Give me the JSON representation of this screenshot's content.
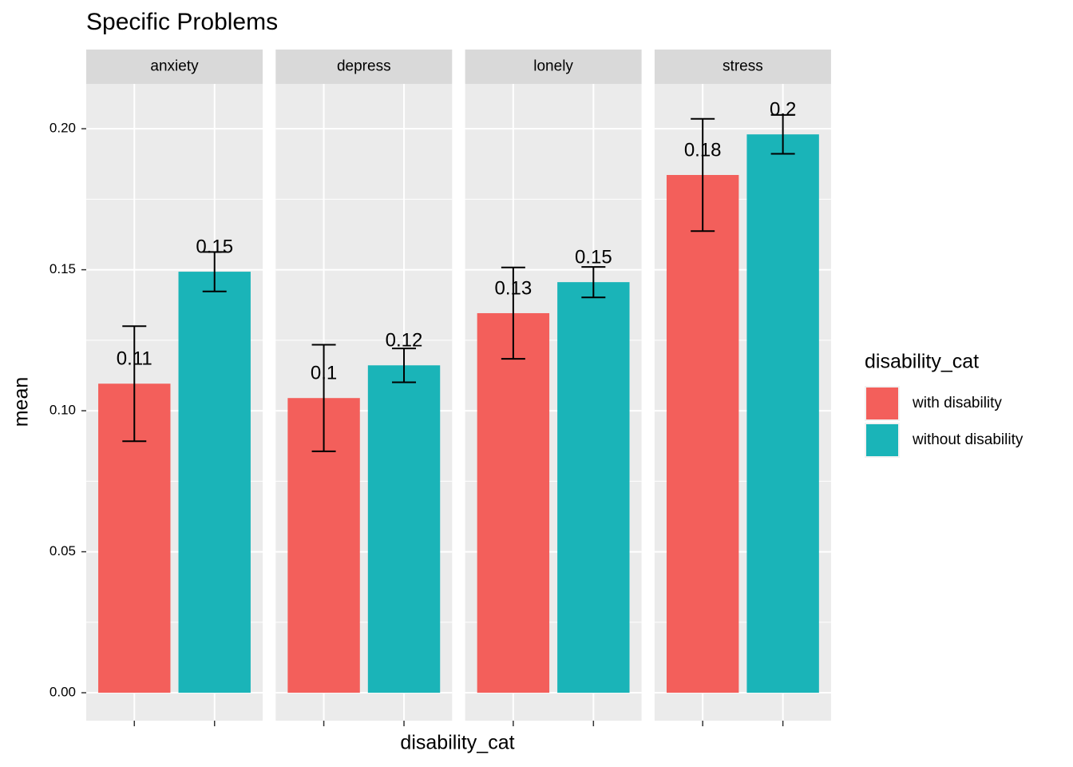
{
  "chart_data": {
    "type": "bar",
    "title": "Specific Problems",
    "x_label": "disability_cat",
    "y_label": "mean",
    "legend_title": "disability_cat",
    "facets": [
      "anxiety",
      "depress",
      "lonely",
      "stress"
    ],
    "series": [
      {
        "name": "with disability",
        "color": "#f35f5b",
        "values": [
          0.1096,
          0.1045,
          0.1346,
          0.1836
        ],
        "value_labels": [
          "0.11",
          "0.1",
          "0.13",
          "0.18"
        ],
        "errors": [
          0.0204,
          0.0189,
          0.0162,
          0.0199
        ]
      },
      {
        "name": "without disability",
        "color": "#1ab4b8",
        "values": [
          0.1493,
          0.1161,
          0.1456,
          0.198
        ],
        "value_labels": [
          "0.15",
          "0.12",
          "0.15",
          "0.2"
        ],
        "errors": [
          0.007,
          0.006,
          0.0054,
          0.0069
        ]
      }
    ],
    "ylim": [
      -0.0099,
      0.2159
    ],
    "yticks": [
      {
        "value": 0,
        "label": "0.00"
      },
      0.05,
      {
        "value": 0.1,
        "label": "0.10"
      },
      0.15,
      {
        "value": 0.2,
        "label": "0.20"
      }
    ],
    "grid": true,
    "legend": "right"
  }
}
